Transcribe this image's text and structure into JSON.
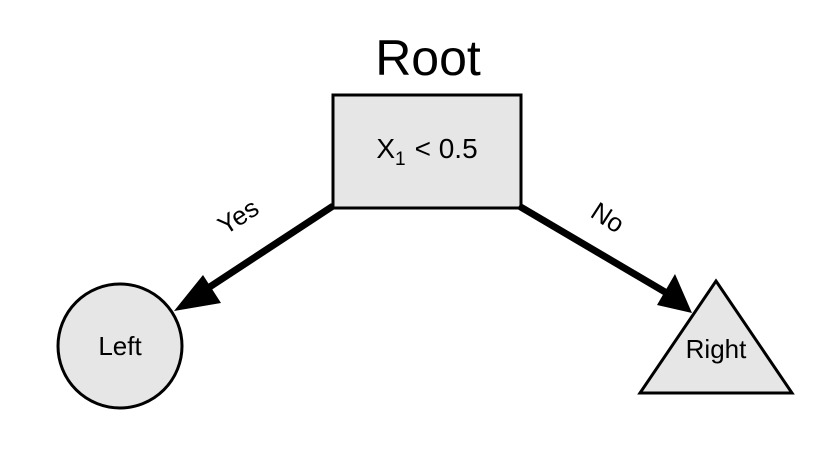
{
  "title": "Root",
  "root": {
    "feature": "X",
    "subscript": "1",
    "condition": "< 0.5"
  },
  "edges": {
    "yes_label": "Yes",
    "no_label": "No"
  },
  "leaves": {
    "left_label": "Left",
    "right_label": "Right"
  },
  "colors": {
    "node_fill": "#e6e6e6",
    "stroke": "#000000",
    "background": "#ffffff"
  }
}
